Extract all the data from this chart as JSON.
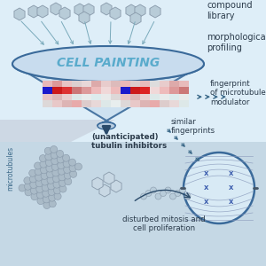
{
  "bg_top": "#ddeef8",
  "bg_bottom": "#c8dde8",
  "bg_mid": "#ccd8e4",
  "funnel_fill": "#cce0f0",
  "funnel_stroke": "#3a6a9a",
  "funnel_ellipse_fill": "#b8d4ec",
  "title": "CELL PAINTING",
  "title_color": "#5aabcc",
  "text_color": "#2a3a4a",
  "arrow_color_light": "#7aaabb",
  "arrow_color_dark": "#2a4a6a",
  "hm_row1": [
    "#e8b8b8",
    "#dd9999",
    "#e8c4c4",
    "#ddd0d0",
    "#e8d8d8",
    "#ddaaaa",
    "#e8cccc",
    "#ddbbbb",
    "#e8b8b8",
    "#ddcccc",
    "#e8bbbb",
    "#dddddd",
    "#e8cccc",
    "#ddaaaa",
    "#e8bbbb"
  ],
  "hm_row2": [
    "#1a1acc",
    "#cc1a1a",
    "#dd3333",
    "#cc7777",
    "#dd9999",
    "#eebbbb",
    "#f0d8d8",
    "#eebbbb",
    "#1a1acc",
    "#cc1a1a",
    "#dd2222",
    "#f0d8d8",
    "#eebbbb",
    "#dd9999",
    "#cc7777"
  ],
  "hm_row3": [
    "#e8c4c4",
    "#ddb8b8",
    "#e8d0d0",
    "#dde8e8",
    "#e8ecec",
    "#ddeced",
    "#e8eaea",
    "#ddd8d8",
    "#e8c4c4",
    "#ddb8b8",
    "#e8d0d0",
    "#dde8e8",
    "#e8ecec",
    "#ddeced",
    "#e8eaea"
  ],
  "hm_row4": [
    "#ddd8d8",
    "#e8c8c8",
    "#ddb4b4",
    "#e8aaaa",
    "#ddcccc",
    "#e8d8d8",
    "#dde8e8",
    "#e8eeee",
    "#ddd8d8",
    "#e8c8c8",
    "#ddb4b4",
    "#e8aaaa",
    "#ddcccc",
    "#e8d8d8",
    "#dde8e8"
  ],
  "labels": {
    "compound_library": "compound\nlibrary",
    "morphological_profiling": "morphological\nprofiling",
    "fingerprint": "fingerprint\nof microtubule\nmodulator",
    "similar_fingerprints": "similar\nfingerprints",
    "unanticipated": "(unanticipated)\ntubulin inhibitors",
    "microtubules": "microtubules",
    "disturbed": "disturbed mitosis and\ncell proliferation"
  }
}
